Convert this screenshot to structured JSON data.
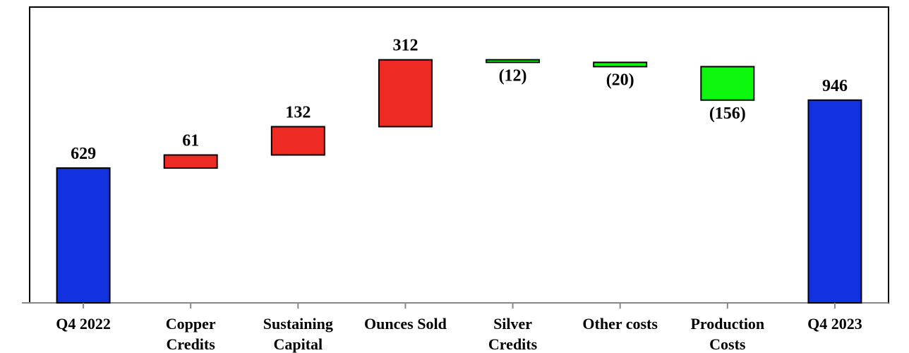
{
  "chart_data": {
    "type": "waterfall",
    "categories": [
      [
        "Q4 2022"
      ],
      [
        "Copper",
        "Credits"
      ],
      [
        "Sustaining",
        "Capital"
      ],
      [
        "Ounces Sold"
      ],
      [
        "Silver",
        "Credits"
      ],
      [
        "Other costs"
      ],
      [
        "Production",
        "Costs"
      ],
      [
        "Q4 2023"
      ]
    ],
    "steps": [
      {
        "kind": "total",
        "value": 629,
        "label": "629"
      },
      {
        "kind": "increase",
        "value": 61,
        "label": "61"
      },
      {
        "kind": "increase",
        "value": 132,
        "label": "132"
      },
      {
        "kind": "increase",
        "value": 312,
        "label": "312"
      },
      {
        "kind": "decrease",
        "value": -12,
        "label": "(12)"
      },
      {
        "kind": "decrease",
        "value": -20,
        "label": "(20)"
      },
      {
        "kind": "decrease",
        "value": -156,
        "label": "(156)"
      },
      {
        "kind": "total",
        "value": 946,
        "label": "946"
      }
    ],
    "ylim": [
      0,
      1380
    ],
    "grid": false,
    "legend": "none",
    "colors": {
      "total": "#1232e0",
      "increase": "#ee2a24",
      "decrease": "#0df70d",
      "stroke": "#000000"
    }
  }
}
